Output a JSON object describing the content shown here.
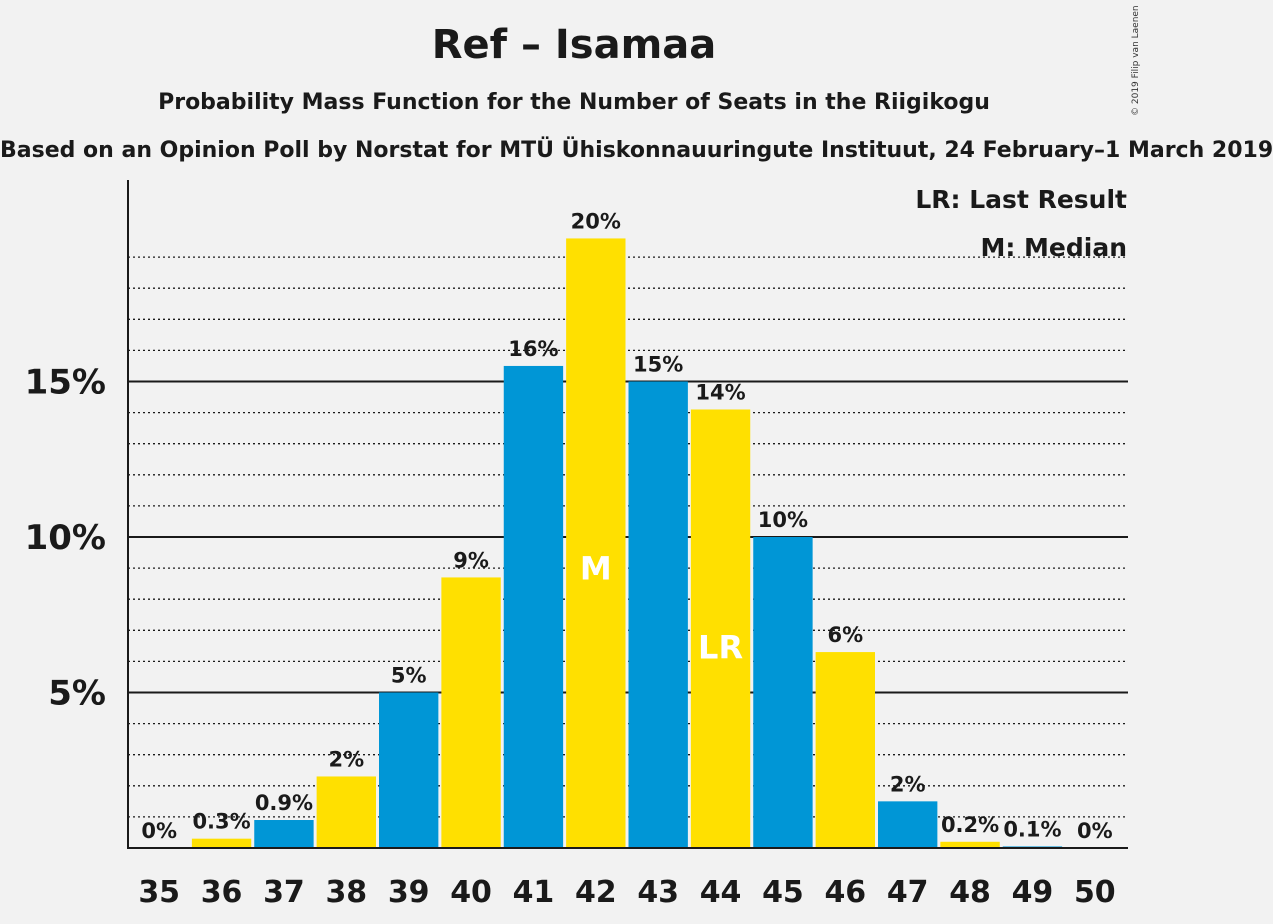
{
  "title": "Ref – Isamaa",
  "subtitle": "Probability Mass Function for the Number of Seats in the Riigikogu",
  "caption": "Based on an Opinion Poll by Norstat for MTÜ Ühiskonnauuringute Instituut, 24 February–1 March 2019",
  "copyright": "© 2019 Filip van Laenen",
  "legend": {
    "lr": "LR: Last Result",
    "m": "M: Median"
  },
  "colors": {
    "blue": "#0096d6",
    "yellow": "#ffe000"
  },
  "chart_data": {
    "type": "bar",
    "title": "Ref – Isamaa",
    "xlabel": "",
    "ylabel": "",
    "ylim": [
      0,
      21
    ],
    "yticks": [
      {
        "value": 5,
        "label": "5%"
      },
      {
        "value": 10,
        "label": "10%"
      },
      {
        "value": 15,
        "label": "15%"
      }
    ],
    "categories": [
      "35",
      "36",
      "37",
      "38",
      "39",
      "40",
      "41",
      "42",
      "43",
      "44",
      "45",
      "46",
      "47",
      "48",
      "49",
      "50"
    ],
    "values": [
      0,
      0.3,
      0.9,
      2.3,
      5.0,
      8.7,
      15.5,
      19.6,
      15.0,
      14.1,
      10.0,
      6.3,
      1.5,
      0.2,
      0.05,
      0
    ],
    "labels": [
      "0%",
      "0.3%",
      "0.9%",
      "2%",
      "5%",
      "9%",
      "16%",
      "20%",
      "15%",
      "14%",
      "10%",
      "6%",
      "2%",
      "0.2%",
      "0.1%",
      "0%"
    ],
    "bar_colors": [
      "blue",
      "yellow",
      "blue",
      "yellow",
      "blue",
      "yellow",
      "blue",
      "yellow",
      "blue",
      "yellow",
      "blue",
      "yellow",
      "blue",
      "yellow",
      "blue",
      "yellow"
    ],
    "annotations": [
      {
        "category": "42",
        "text": "M"
      },
      {
        "category": "44",
        "text": "LR"
      }
    ]
  }
}
